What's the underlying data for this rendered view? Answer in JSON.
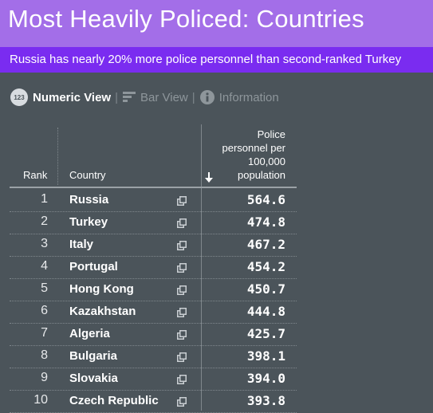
{
  "header": {
    "title": "Most Heavily Policed: Countries",
    "subtitle": "Russia has nearly 20% more police personnel than second-ranked Turkey"
  },
  "tabs": [
    {
      "label": "Numeric View",
      "icon": "numeric-123-icon",
      "active": true
    },
    {
      "label": "Bar View",
      "icon": "bar-chart-icon",
      "active": false
    },
    {
      "label": "Information",
      "icon": "info-icon",
      "active": false
    }
  ],
  "table": {
    "columns": {
      "rank": "Rank",
      "country": "Country",
      "metric": [
        "Police",
        "personnel per",
        "100,000",
        "population"
      ]
    },
    "sort": "descending",
    "rows": [
      {
        "rank": "1",
        "country": "Russia",
        "value": "564.6"
      },
      {
        "rank": "2",
        "country": "Turkey",
        "value": "474.8"
      },
      {
        "rank": "3",
        "country": "Italy",
        "value": "467.2"
      },
      {
        "rank": "4",
        "country": "Portugal",
        "value": "454.2"
      },
      {
        "rank": "5",
        "country": "Hong Kong",
        "value": "450.7"
      },
      {
        "rank": "6",
        "country": "Kazakhstan",
        "value": "444.8"
      },
      {
        "rank": "7",
        "country": "Algeria",
        "value": "425.7"
      },
      {
        "rank": "8",
        "country": "Bulgaria",
        "value": "398.1"
      },
      {
        "rank": "9",
        "country": "Slovakia",
        "value": "394.0"
      },
      {
        "rank": "10",
        "country": "Czech Republic",
        "value": "393.8"
      }
    ]
  },
  "colors": {
    "title_bar": "#a36ee8",
    "subtitle_bar": "#7a2cf0",
    "background": "#4b545a"
  }
}
